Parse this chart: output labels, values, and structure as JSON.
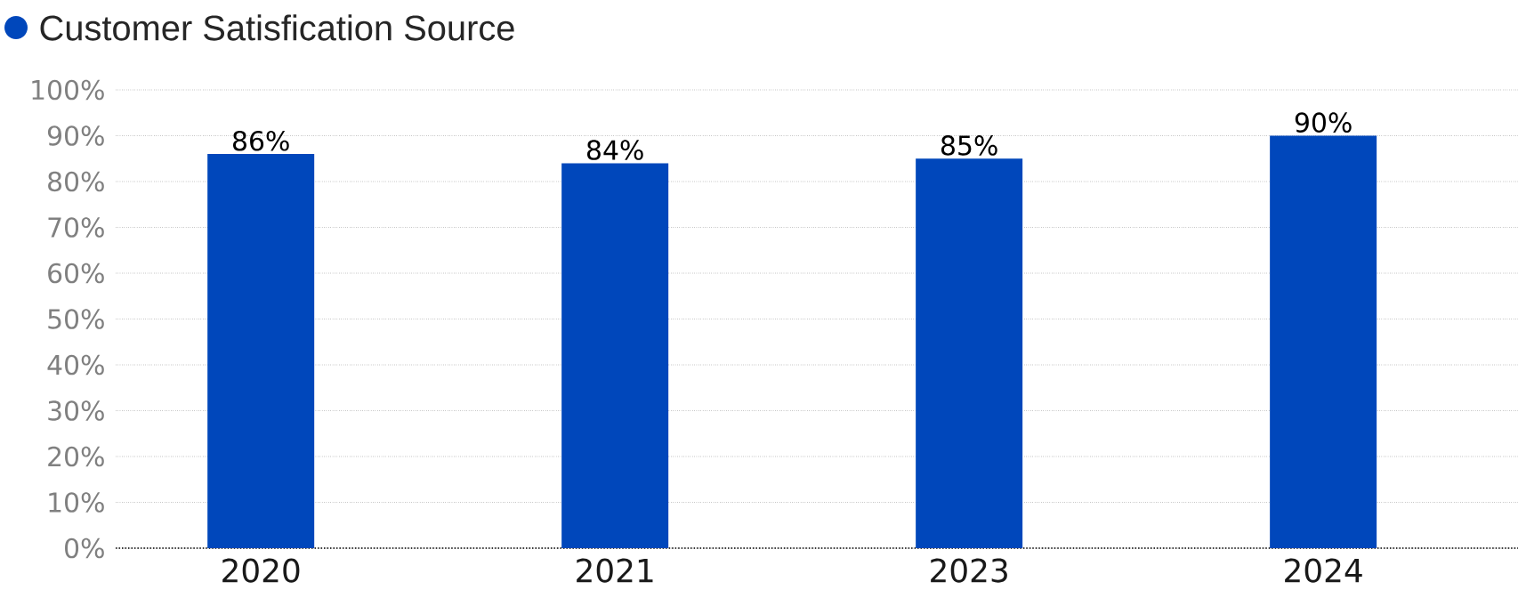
{
  "chart_data": {
    "type": "bar",
    "title": "Customer Satisfication Source",
    "categories": [
      "2020",
      "2021",
      "2023",
      "2024"
    ],
    "values": [
      86,
      84,
      85,
      90
    ],
    "value_labels": [
      "86%",
      "84%",
      "85%",
      "90%"
    ],
    "color": "#0047bb",
    "ylim": [
      0,
      100
    ],
    "yticks": [
      {
        "value": 0,
        "label": "0%"
      },
      {
        "value": 10,
        "label": "10%"
      },
      {
        "value": 20,
        "label": "20%"
      },
      {
        "value": 30,
        "label": "30%"
      },
      {
        "value": 40,
        "label": "40%"
      },
      {
        "value": 50,
        "label": "50%"
      },
      {
        "value": 60,
        "label": "60%"
      },
      {
        "value": 70,
        "label": "70%"
      },
      {
        "value": 80,
        "label": "80%"
      },
      {
        "value": 90,
        "label": "90%"
      },
      {
        "value": 100,
        "label": "100%"
      }
    ],
    "grid": "y"
  }
}
